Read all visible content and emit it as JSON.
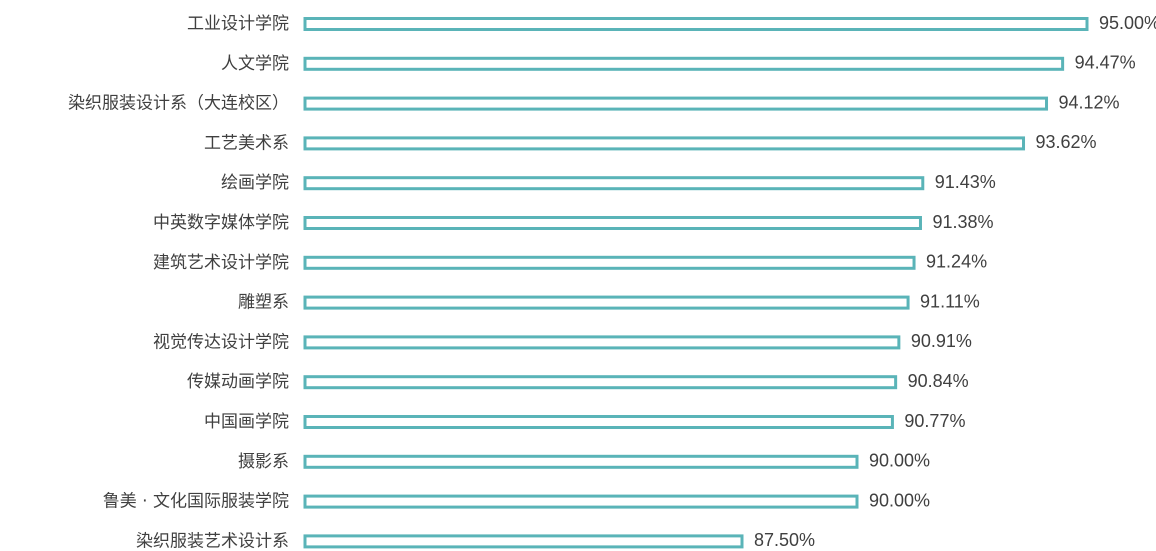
{
  "chart_data": {
    "type": "bar",
    "orientation": "horizontal",
    "categories": [
      "工业设计学院",
      "人文学院",
      "染织服装设计系（大连校区）",
      "工艺美术系",
      "绘画学院",
      "中英数字媒体学院",
      "建筑艺术设计学院",
      "雕塑系",
      "视觉传达设计学院",
      "传媒动画学院",
      "中国画学院",
      "摄影系",
      "鲁美 · 文化国际服装学院",
      "染织服装艺术设计系"
    ],
    "values": [
      95.0,
      94.47,
      94.12,
      93.62,
      91.43,
      91.38,
      91.24,
      91.11,
      90.91,
      90.84,
      90.77,
      90.0,
      90.0,
      87.5
    ],
    "value_labels": [
      "95.00%",
      "94.47%",
      "94.12%",
      "93.62%",
      "91.43%",
      "91.38%",
      "91.24%",
      "91.11%",
      "90.91%",
      "90.84%",
      "90.77%",
      "90.00%",
      "90.00%",
      "87.50%"
    ],
    "xlim": [
      78,
      95.25
    ],
    "bar_style": "outlined",
    "colors": {
      "bar_stroke": "#5ab4b8",
      "bar_fill": "#ffffff",
      "text": "#404040"
    },
    "grid": false,
    "legend": "none",
    "title": "",
    "xlabel": "",
    "ylabel": ""
  }
}
